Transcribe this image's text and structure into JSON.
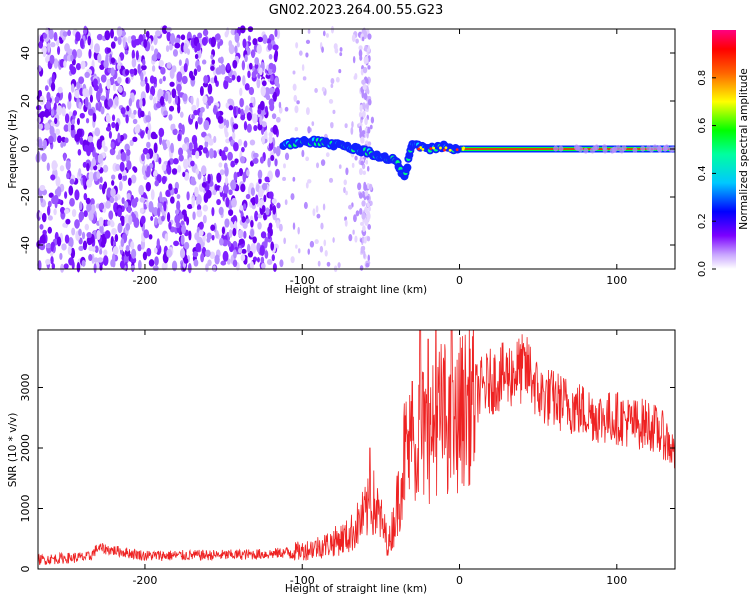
{
  "chart_data": [
    {
      "type": "heatmap",
      "title": "GN02.2023.264.00.55.G23",
      "xlabel": "Height of straight line (km)",
      "ylabel": "Frequency (Hz)",
      "xlim": [
        -268,
        137
      ],
      "ylim": [
        -50,
        50
      ],
      "x_ticks": [
        -200,
        -100,
        0,
        100
      ],
      "y_ticks": [
        -40,
        -20,
        0,
        20,
        40
      ],
      "grid": false,
      "colorbar": {
        "label": "Normalized spectral amplitude",
        "range": [
          0,
          1
        ],
        "ticks": [
          0.0,
          0.2,
          0.4,
          0.6,
          0.8
        ],
        "colormap": [
          "#ffffff",
          "#8a2be2",
          "#0000ff",
          "#00ffff",
          "#00ff00",
          "#ffff00",
          "#ff0000",
          "#ff0080"
        ]
      },
      "features": {
        "noise_region_x": [
          -268,
          -115
        ],
        "noise_tail_x": [
          -115,
          -55
        ],
        "signal_line_frequency_hz": 0,
        "signal_onset_x": -115,
        "blob_track": [
          [
            -112,
            2
          ],
          [
            -100,
            3
          ],
          [
            -90,
            3
          ],
          [
            -80,
            2
          ],
          [
            -70,
            1
          ],
          [
            -60,
            -1
          ],
          [
            -50,
            -3
          ],
          [
            -40,
            -5
          ],
          [
            -35,
            -12
          ],
          [
            -30,
            2
          ],
          [
            -20,
            0
          ],
          [
            -10,
            1
          ],
          [
            0,
            0
          ]
        ]
      }
    },
    {
      "type": "line",
      "xlabel": "Height of straight line (km)",
      "ylabel": "SNR (10 * v/v)",
      "xlim": [
        -268,
        137
      ],
      "ylim": [
        0,
        3950
      ],
      "x_ticks": [
        -200,
        -100,
        0,
        100
      ],
      "y_ticks": [
        0,
        1000,
        2000,
        3000
      ],
      "grid": false,
      "color": "#ee2222",
      "x": [
        -268,
        -250,
        -235,
        -230,
        -200,
        -150,
        -120,
        -100,
        -85,
        -70,
        -60,
        -55,
        -50,
        -45,
        -40,
        -35,
        -30,
        -25,
        -20,
        -15,
        -10,
        -5,
        0,
        5,
        10,
        20,
        30,
        40,
        45,
        50,
        60,
        70,
        80,
        90,
        100,
        110,
        120,
        130,
        137
      ],
      "y": [
        150,
        180,
        200,
        350,
        220,
        230,
        250,
        300,
        400,
        550,
        900,
        1100,
        800,
        400,
        1000,
        1900,
        2000,
        2300,
        2100,
        2400,
        2600,
        2100,
        2600,
        2700,
        2900,
        3100,
        3200,
        3300,
        3250,
        2900,
        2800,
        2700,
        2600,
        2500,
        2500,
        2400,
        2400,
        2200,
        1900
      ],
      "spikes": [
        [
          -57,
          2000
        ],
        [
          -30,
          3100
        ],
        [
          -25,
          3950
        ],
        [
          -20,
          3800
        ],
        [
          -15,
          3950
        ],
        [
          -5,
          3950
        ]
      ]
    }
  ]
}
